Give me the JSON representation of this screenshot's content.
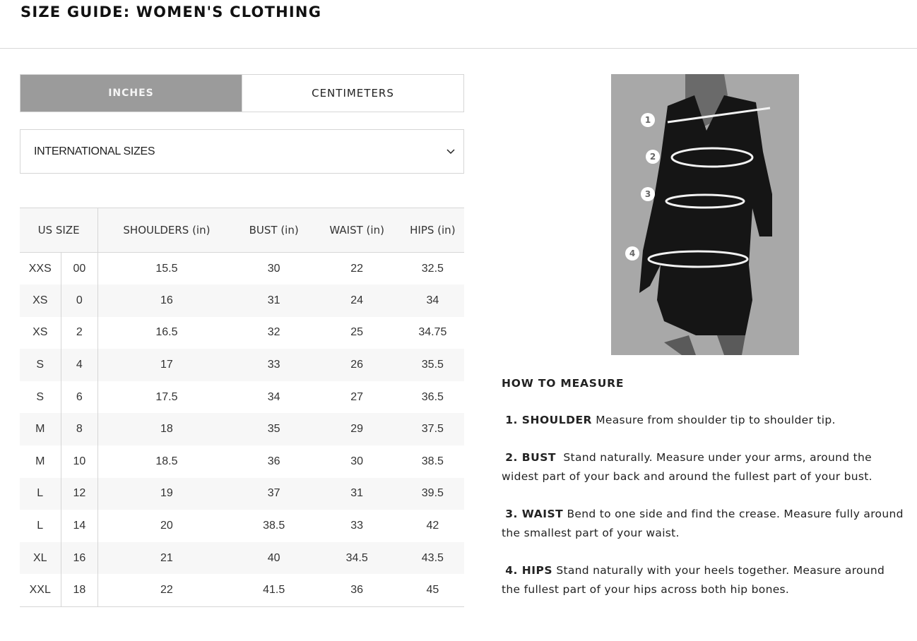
{
  "title": "SIZE GUIDE: WOMEN'S CLOTHING",
  "units": {
    "inches": "INCHES",
    "centimeters": "CENTIMETERS",
    "selected": "INCHES"
  },
  "size_select": {
    "value": "INTERNATIONAL SIZES"
  },
  "table": {
    "headers": [
      "US SIZE",
      "SHOULDERS (in)",
      "BUST (in)",
      "WAIST (in)",
      "HIPS (in)"
    ],
    "rows": [
      [
        "XXS",
        "00",
        "15.5",
        "30",
        "22",
        "32.5"
      ],
      [
        "XS",
        "0",
        "16",
        "31",
        "24",
        "34"
      ],
      [
        "XS",
        "2",
        "16.5",
        "32",
        "25",
        "34.75"
      ],
      [
        "S",
        "4",
        "17",
        "33",
        "26",
        "35.5"
      ],
      [
        "S",
        "6",
        "17.5",
        "34",
        "27",
        "36.5"
      ],
      [
        "M",
        "8",
        "18",
        "35",
        "29",
        "37.5"
      ],
      [
        "M",
        "10",
        "18.5",
        "36",
        "30",
        "38.5"
      ],
      [
        "L",
        "12",
        "19",
        "37",
        "31",
        "39.5"
      ],
      [
        "L",
        "14",
        "20",
        "38.5",
        "33",
        "42"
      ],
      [
        "XL",
        "16",
        "21",
        "40",
        "34.5",
        "43.5"
      ],
      [
        "XXL",
        "18",
        "22",
        "41.5",
        "36",
        "45"
      ]
    ]
  },
  "image": {
    "markers": [
      "1",
      "2",
      "3",
      "4"
    ]
  },
  "how_to": {
    "heading": "HOW TO MEASURE",
    "steps": [
      {
        "label": "1. SHOULDER",
        "text": "Measure from shoulder tip to shoulder tip."
      },
      {
        "label": "2. BUST",
        "text": "Stand naturally. Measure under your arms, around the widest part of your back and around the fullest part of your bust."
      },
      {
        "label": "3. WAIST",
        "text": "Bend to one side and find the crease. Measure fully around the smallest part of your waist."
      },
      {
        "label": "4. HIPS",
        "text": "Stand naturally with your heels together. Measure around the fullest part of your hips across both hip bones."
      }
    ]
  }
}
